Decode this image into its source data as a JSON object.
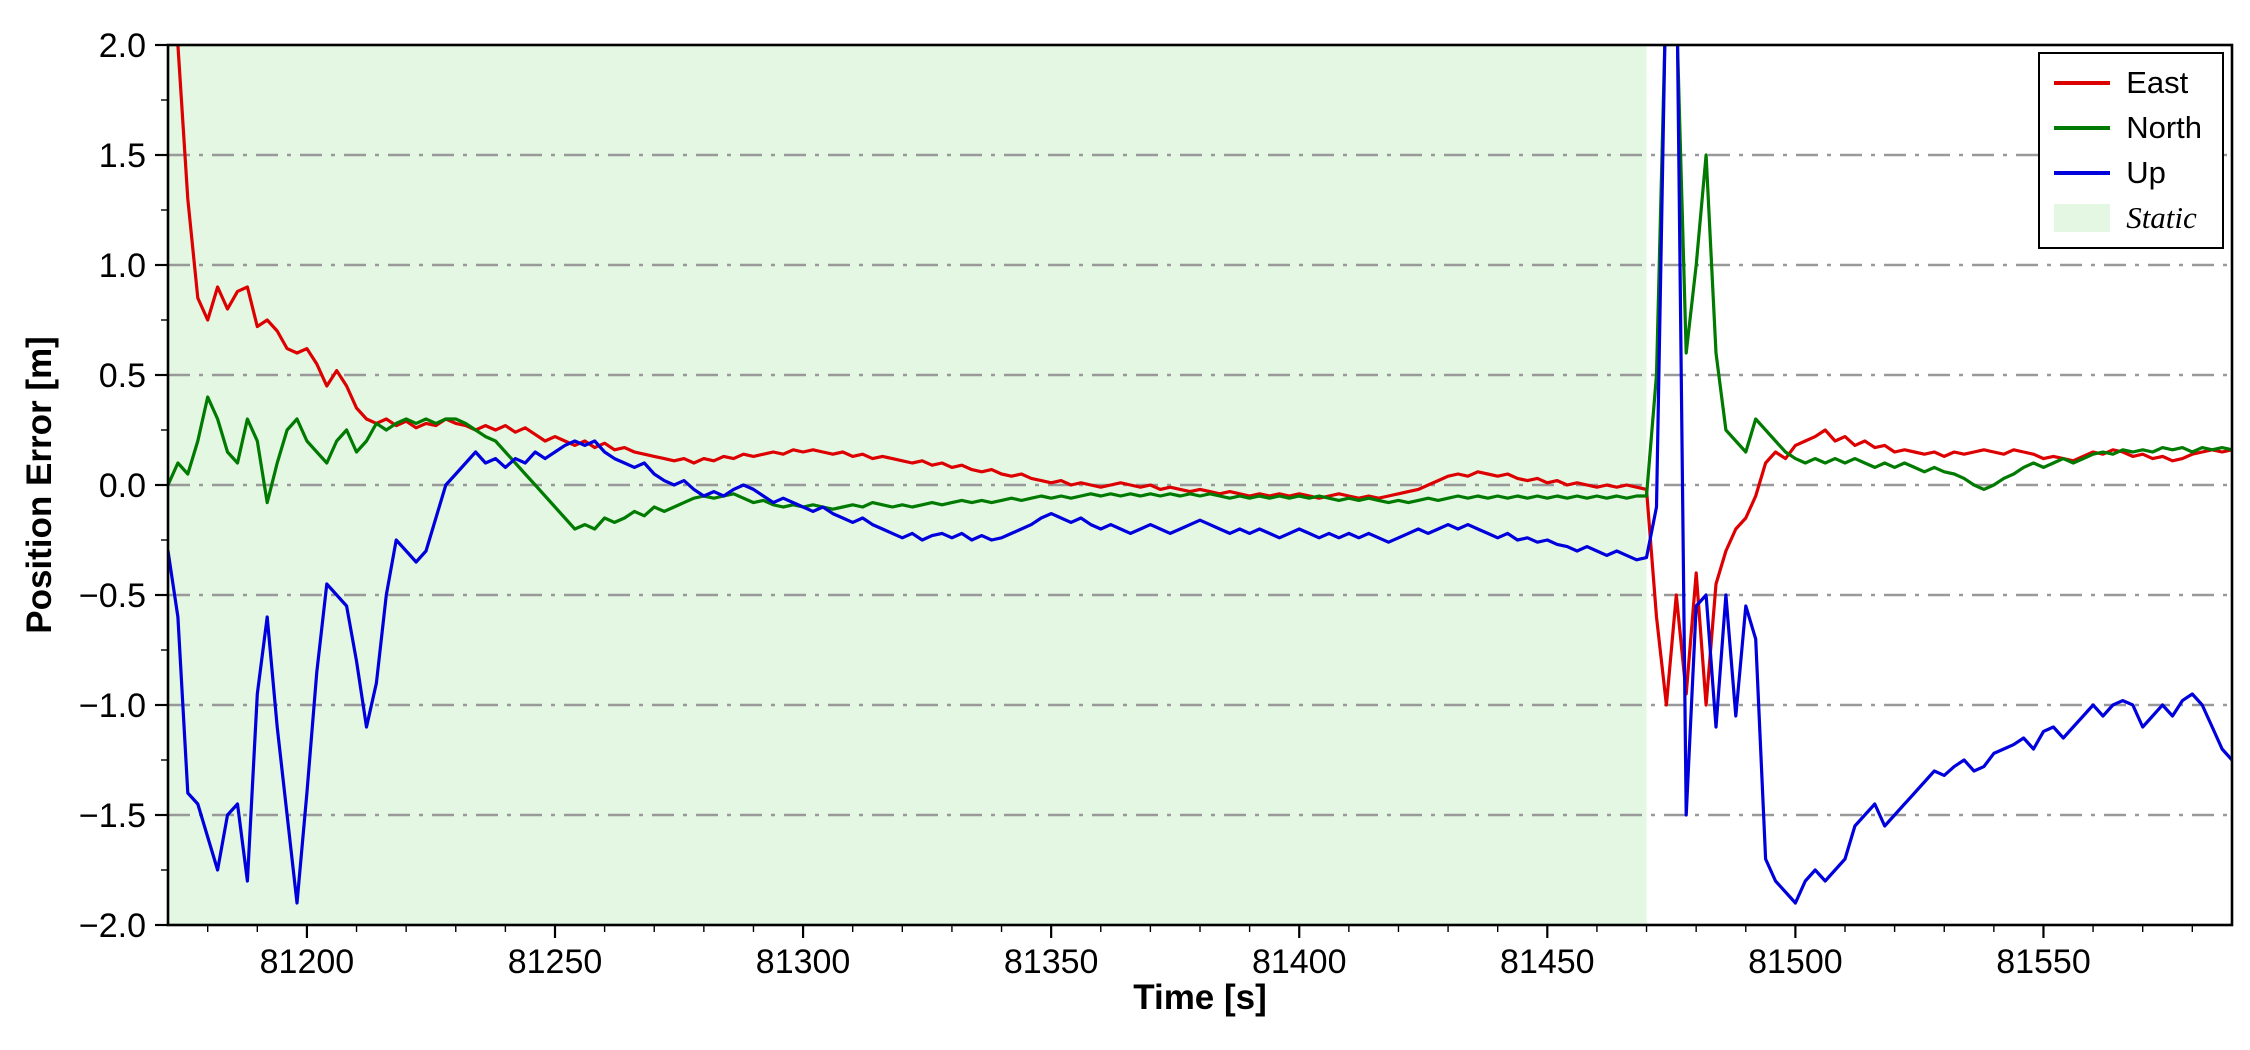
{
  "chart_data": {
    "type": "line",
    "title": "",
    "xlabel": "Time [s]",
    "ylabel": "Position Error [m]",
    "xlim": [
      81172,
      81588
    ],
    "ylim": [
      -2.0,
      2.0
    ],
    "xticks": [
      81200,
      81250,
      81300,
      81350,
      81400,
      81450,
      81500,
      81550
    ],
    "yticks": [
      2.0,
      1.5,
      1.0,
      0.5,
      0.0,
      -0.5,
      -1.0,
      -1.5,
      -2.0
    ],
    "ytick_labels": [
      "2.0",
      "1.5",
      "1.0",
      "0.5",
      "0.0",
      "−0.5",
      "−1.0",
      "−1.5",
      "−2.0"
    ],
    "grid": {
      "axis": "y",
      "style": "dash-dot",
      "color": "#999999",
      "values": [
        1.5,
        1.0,
        0.5,
        0.0,
        -0.5,
        -1.0,
        -1.5
      ]
    },
    "static_region": {
      "x_start": 81172,
      "x_end": 81470,
      "color": "#e3f7e3",
      "label": "Static"
    },
    "x_start": 81172,
    "x_step": 2,
    "legend_position": "top-right",
    "series": [
      {
        "name": "East",
        "color": "#dd0000",
        "values": [
          2.6,
          2.0,
          1.3,
          0.85,
          0.75,
          0.9,
          0.8,
          0.88,
          0.9,
          0.72,
          0.75,
          0.7,
          0.62,
          0.6,
          0.62,
          0.55,
          0.45,
          0.52,
          0.45,
          0.35,
          0.3,
          0.28,
          0.3,
          0.27,
          0.29,
          0.26,
          0.28,
          0.27,
          0.3,
          0.28,
          0.27,
          0.25,
          0.27,
          0.25,
          0.27,
          0.24,
          0.26,
          0.23,
          0.2,
          0.22,
          0.2,
          0.18,
          0.2,
          0.17,
          0.19,
          0.16,
          0.17,
          0.15,
          0.14,
          0.13,
          0.12,
          0.11,
          0.12,
          0.1,
          0.12,
          0.11,
          0.13,
          0.12,
          0.14,
          0.13,
          0.14,
          0.15,
          0.14,
          0.16,
          0.15,
          0.16,
          0.15,
          0.14,
          0.15,
          0.13,
          0.14,
          0.12,
          0.13,
          0.12,
          0.11,
          0.1,
          0.11,
          0.09,
          0.1,
          0.08,
          0.09,
          0.07,
          0.06,
          0.07,
          0.05,
          0.04,
          0.05,
          0.03,
          0.02,
          0.01,
          0.02,
          0.0,
          0.01,
          0.0,
          -0.01,
          0.0,
          0.01,
          0.0,
          -0.01,
          0.0,
          -0.02,
          -0.01,
          -0.02,
          -0.03,
          -0.02,
          -0.03,
          -0.04,
          -0.03,
          -0.04,
          -0.05,
          -0.04,
          -0.05,
          -0.04,
          -0.05,
          -0.04,
          -0.05,
          -0.06,
          -0.05,
          -0.04,
          -0.05,
          -0.06,
          -0.05,
          -0.06,
          -0.05,
          -0.04,
          -0.03,
          -0.02,
          0.0,
          0.02,
          0.04,
          0.05,
          0.04,
          0.06,
          0.05,
          0.04,
          0.05,
          0.03,
          0.02,
          0.03,
          0.01,
          0.02,
          0.0,
          0.01,
          0.0,
          -0.01,
          0.0,
          -0.01,
          0.0,
          -0.01,
          -0.02,
          -0.6,
          -1.0,
          -0.5,
          -0.95,
          -0.4,
          -1.0,
          -0.45,
          -0.3,
          -0.2,
          -0.15,
          -0.05,
          0.1,
          0.15,
          0.12,
          0.18,
          0.2,
          0.22,
          0.25,
          0.2,
          0.22,
          0.18,
          0.2,
          0.17,
          0.18,
          0.15,
          0.16,
          0.15,
          0.14,
          0.15,
          0.13,
          0.15,
          0.14,
          0.15,
          0.16,
          0.15,
          0.14,
          0.16,
          0.15,
          0.14,
          0.12,
          0.13,
          0.12,
          0.11,
          0.13,
          0.15,
          0.14,
          0.16,
          0.15,
          0.13,
          0.14,
          0.12,
          0.13,
          0.11,
          0.12,
          0.14,
          0.15,
          0.16,
          0.15,
          0.16
        ]
      },
      {
        "name": "North",
        "color": "#007a00",
        "values": [
          0.0,
          0.1,
          0.05,
          0.2,
          0.4,
          0.3,
          0.15,
          0.1,
          0.3,
          0.2,
          -0.08,
          0.1,
          0.25,
          0.3,
          0.2,
          0.15,
          0.1,
          0.2,
          0.25,
          0.15,
          0.2,
          0.28,
          0.25,
          0.28,
          0.3,
          0.28,
          0.3,
          0.28,
          0.3,
          0.3,
          0.28,
          0.25,
          0.22,
          0.2,
          0.15,
          0.1,
          0.05,
          0.0,
          -0.05,
          -0.1,
          -0.15,
          -0.2,
          -0.18,
          -0.2,
          -0.15,
          -0.17,
          -0.15,
          -0.12,
          -0.14,
          -0.1,
          -0.12,
          -0.1,
          -0.08,
          -0.06,
          -0.05,
          -0.06,
          -0.05,
          -0.04,
          -0.06,
          -0.08,
          -0.07,
          -0.09,
          -0.1,
          -0.09,
          -0.1,
          -0.09,
          -0.1,
          -0.11,
          -0.1,
          -0.09,
          -0.1,
          -0.08,
          -0.09,
          -0.1,
          -0.09,
          -0.1,
          -0.09,
          -0.08,
          -0.09,
          -0.08,
          -0.07,
          -0.08,
          -0.07,
          -0.08,
          -0.07,
          -0.06,
          -0.07,
          -0.06,
          -0.05,
          -0.06,
          -0.05,
          -0.06,
          -0.05,
          -0.04,
          -0.05,
          -0.04,
          -0.05,
          -0.04,
          -0.05,
          -0.04,
          -0.05,
          -0.04,
          -0.05,
          -0.04,
          -0.05,
          -0.04,
          -0.05,
          -0.06,
          -0.05,
          -0.06,
          -0.05,
          -0.06,
          -0.05,
          -0.06,
          -0.05,
          -0.06,
          -0.05,
          -0.06,
          -0.07,
          -0.06,
          -0.07,
          -0.06,
          -0.07,
          -0.08,
          -0.07,
          -0.08,
          -0.07,
          -0.06,
          -0.07,
          -0.06,
          -0.05,
          -0.06,
          -0.05,
          -0.06,
          -0.05,
          -0.06,
          -0.05,
          -0.06,
          -0.05,
          -0.06,
          -0.05,
          -0.06,
          -0.05,
          -0.06,
          -0.05,
          -0.06,
          -0.05,
          -0.06,
          -0.05,
          -0.05,
          0.5,
          2.3,
          2.2,
          0.6,
          1.0,
          1.5,
          0.6,
          0.25,
          0.2,
          0.15,
          0.3,
          0.25,
          0.2,
          0.15,
          0.12,
          0.1,
          0.12,
          0.1,
          0.12,
          0.1,
          0.12,
          0.1,
          0.08,
          0.1,
          0.08,
          0.1,
          0.08,
          0.06,
          0.08,
          0.06,
          0.05,
          0.03,
          0.0,
          -0.02,
          0.0,
          0.03,
          0.05,
          0.08,
          0.1,
          0.08,
          0.1,
          0.12,
          0.1,
          0.12,
          0.14,
          0.15,
          0.14,
          0.16,
          0.15,
          0.16,
          0.15,
          0.17,
          0.16,
          0.17,
          0.15,
          0.17,
          0.16,
          0.17,
          0.16
        ]
      },
      {
        "name": "Up",
        "color": "#0000dd",
        "values": [
          -0.3,
          -0.6,
          -1.4,
          -1.45,
          -1.6,
          -1.75,
          -1.5,
          -1.45,
          -1.8,
          -0.95,
          -0.6,
          -1.1,
          -1.5,
          -1.9,
          -1.4,
          -0.85,
          -0.45,
          -0.5,
          -0.55,
          -0.8,
          -1.1,
          -0.9,
          -0.5,
          -0.25,
          -0.3,
          -0.35,
          -0.3,
          -0.15,
          0.0,
          0.05,
          0.1,
          0.15,
          0.1,
          0.12,
          0.08,
          0.12,
          0.1,
          0.15,
          0.12,
          0.15,
          0.18,
          0.2,
          0.18,
          0.2,
          0.15,
          0.12,
          0.1,
          0.08,
          0.1,
          0.05,
          0.02,
          0.0,
          0.02,
          -0.02,
          -0.05,
          -0.03,
          -0.05,
          -0.02,
          0.0,
          -0.02,
          -0.05,
          -0.08,
          -0.06,
          -0.08,
          -0.1,
          -0.12,
          -0.1,
          -0.13,
          -0.15,
          -0.17,
          -0.15,
          -0.18,
          -0.2,
          -0.22,
          -0.24,
          -0.22,
          -0.25,
          -0.23,
          -0.22,
          -0.24,
          -0.22,
          -0.25,
          -0.23,
          -0.25,
          -0.24,
          -0.22,
          -0.2,
          -0.18,
          -0.15,
          -0.13,
          -0.15,
          -0.17,
          -0.15,
          -0.18,
          -0.2,
          -0.18,
          -0.2,
          -0.22,
          -0.2,
          -0.18,
          -0.2,
          -0.22,
          -0.2,
          -0.18,
          -0.16,
          -0.18,
          -0.2,
          -0.22,
          -0.2,
          -0.22,
          -0.2,
          -0.22,
          -0.24,
          -0.22,
          -0.2,
          -0.22,
          -0.24,
          -0.22,
          -0.24,
          -0.22,
          -0.24,
          -0.22,
          -0.24,
          -0.26,
          -0.24,
          -0.22,
          -0.2,
          -0.22,
          -0.2,
          -0.18,
          -0.2,
          -0.18,
          -0.2,
          -0.22,
          -0.24,
          -0.22,
          -0.25,
          -0.24,
          -0.26,
          -0.25,
          -0.27,
          -0.28,
          -0.3,
          -0.28,
          -0.3,
          -0.32,
          -0.3,
          -0.32,
          -0.34,
          -0.33,
          -0.1,
          2.4,
          2.5,
          -1.5,
          -0.55,
          -0.5,
          -1.1,
          -0.5,
          -1.05,
          -0.55,
          -0.7,
          -1.7,
          -1.8,
          -1.85,
          -1.9,
          -1.8,
          -1.75,
          -1.8,
          -1.75,
          -1.7,
          -1.55,
          -1.5,
          -1.45,
          -1.55,
          -1.5,
          -1.45,
          -1.4,
          -1.35,
          -1.3,
          -1.32,
          -1.28,
          -1.25,
          -1.3,
          -1.28,
          -1.22,
          -1.2,
          -1.18,
          -1.15,
          -1.2,
          -1.12,
          -1.1,
          -1.15,
          -1.1,
          -1.05,
          -1.0,
          -1.05,
          -1.0,
          -0.98,
          -1.0,
          -1.1,
          -1.05,
          -1.0,
          -1.05,
          -0.98,
          -0.95,
          -1.0,
          -1.1,
          -1.2,
          -1.25
        ]
      }
    ]
  }
}
